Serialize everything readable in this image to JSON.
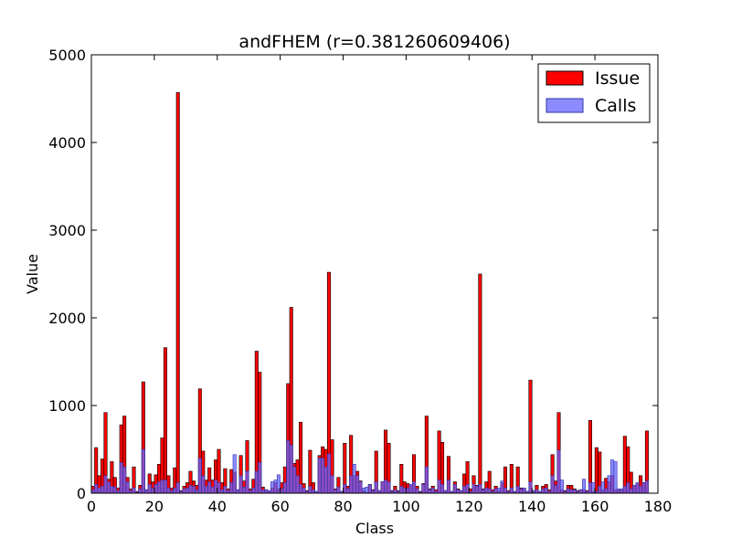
{
  "chart_data": {
    "type": "bar",
    "title": "andFHEM (r=0.381260609406)",
    "xlabel": "Class",
    "ylabel": "Value",
    "xlim": [
      0,
      180
    ],
    "ylim": [
      0,
      5000
    ],
    "xticks": [
      0,
      20,
      40,
      60,
      80,
      100,
      120,
      140,
      160,
      180
    ],
    "yticks": [
      0,
      1000,
      2000,
      3000,
      4000,
      5000
    ],
    "legend_position": "top-right",
    "series": [
      {
        "name": "Issue",
        "color": "#ff0000",
        "edge": "#000000",
        "values": [
          80,
          520,
          200,
          390,
          920,
          160,
          360,
          180,
          60,
          780,
          880,
          180,
          50,
          300,
          20,
          90,
          1270,
          40,
          220,
          130,
          210,
          330,
          630,
          1660,
          200,
          60,
          290,
          4570,
          30,
          80,
          120,
          250,
          140,
          90,
          1190,
          480,
          150,
          290,
          150,
          380,
          500,
          120,
          280,
          50,
          270,
          240,
          40,
          430,
          140,
          600,
          50,
          160,
          1620,
          1380,
          70,
          40,
          20,
          60,
          120,
          50,
          120,
          300,
          1250,
          2120,
          340,
          380,
          810,
          110,
          30,
          490,
          120,
          20,
          430,
          530,
          500,
          2520,
          610,
          50,
          180,
          20,
          570,
          80,
          660,
          200,
          250,
          140,
          30,
          10,
          100,
          40,
          480,
          30,
          130,
          720,
          570,
          30,
          80,
          30,
          330,
          130,
          110,
          90,
          440,
          80,
          20,
          110,
          880,
          50,
          80,
          40,
          710,
          580,
          30,
          420,
          20,
          130,
          50,
          30,
          220,
          360,
          50,
          200,
          90,
          2500,
          50,
          130,
          250,
          40,
          80,
          30,
          120,
          300,
          30,
          330,
          20,
          300,
          60,
          50,
          20,
          1290,
          30,
          90,
          20,
          80,
          100,
          40,
          440,
          140,
          920,
          40,
          30,
          90,
          90,
          50,
          30,
          40,
          40,
          30,
          830,
          20,
          520,
          470,
          40,
          170,
          130,
          200,
          40,
          40,
          40,
          650,
          530,
          240,
          90,
          110,
          200,
          120,
          710
        ]
      },
      {
        "name": "Calls",
        "color": "#6666ff",
        "edge": "#3333aa",
        "values": [
          40,
          100,
          60,
          80,
          200,
          130,
          80,
          70,
          30,
          350,
          300,
          130,
          30,
          60,
          10,
          50,
          500,
          40,
          100,
          60,
          100,
          130,
          150,
          150,
          60,
          30,
          60,
          120,
          20,
          50,
          60,
          90,
          80,
          40,
          400,
          200,
          80,
          130,
          70,
          150,
          120,
          40,
          80,
          30,
          120,
          440,
          40,
          200,
          70,
          250,
          30,
          60,
          250,
          350,
          40,
          40,
          30,
          130,
          150,
          210,
          50,
          120,
          600,
          550,
          300,
          200,
          100,
          60,
          20,
          80,
          40,
          20,
          400,
          400,
          300,
          450,
          200,
          40,
          70,
          20,
          100,
          50,
          200,
          330,
          200,
          130,
          60,
          70,
          100,
          30,
          130,
          30,
          130,
          150,
          130,
          20,
          40,
          20,
          80,
          60,
          60,
          100,
          130,
          50,
          10,
          100,
          300,
          40,
          60,
          20,
          150,
          100,
          30,
          150,
          20,
          100,
          40,
          30,
          80,
          100,
          20,
          100,
          80,
          100,
          40,
          60,
          50,
          20,
          50,
          60,
          140,
          60,
          20,
          60,
          20,
          80,
          50,
          60,
          20,
          130,
          30,
          40,
          20,
          50,
          60,
          20,
          200,
          90,
          490,
          150,
          20,
          50,
          40,
          40,
          20,
          40,
          160,
          20,
          120,
          120,
          20,
          80,
          130,
          50,
          200,
          380,
          360,
          50,
          50,
          80,
          120,
          50,
          90,
          120,
          80,
          120,
          140
        ]
      }
    ]
  }
}
